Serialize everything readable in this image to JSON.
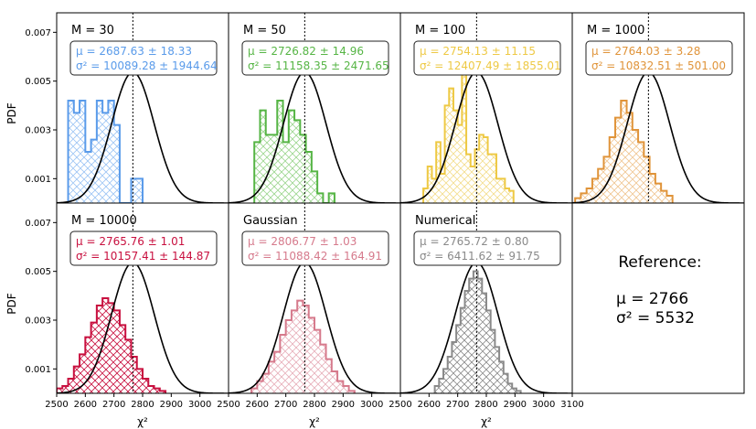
{
  "chart_data": {
    "type": "histogram",
    "y_label": "PDF",
    "x_label": "χ²",
    "x_ticks": [
      "2500",
      "2600",
      "2700",
      "2800",
      "2900",
      "3000",
      "3100"
    ],
    "y_ticks": [
      "0.001",
      "0.003",
      "0.005",
      "0.007"
    ],
    "xlim": [
      2500,
      3100
    ],
    "ylim": [
      0,
      0.0078
    ],
    "reference_curve": {
      "type": "normal",
      "mean": 2766,
      "variance": 5532
    },
    "reference": {
      "title": "Reference:",
      "mu_line": "μ  = 2766",
      "sigma_line": "σ² = 5532"
    },
    "panels": [
      {
        "label": "M = 30",
        "color": "#5a9bea",
        "hatch_color": "#9cc4f4",
        "mu_text": "μ  = 2687.63 ± 18.33",
        "sigma_text": "σ² = 10089.28 ± 1944.64",
        "bin_start": 2540,
        "bin_width": 20,
        "values": [
          0.0042,
          0.0037,
          0.0042,
          0.0021,
          0.0026,
          0.0042,
          0.0037,
          0.0042,
          0.0032,
          0.0,
          0.0,
          0.001,
          0.001
        ]
      },
      {
        "label": "M = 50",
        "color": "#56b545",
        "hatch_color": "#9cd68f",
        "mu_text": "μ  = 2726.82 ± 14.96",
        "sigma_text": "σ² = 11158.35 ± 2471.65",
        "bin_start": 2590,
        "bin_width": 20,
        "values": [
          0.0025,
          0.0038,
          0.0028,
          0.0028,
          0.0042,
          0.0025,
          0.0038,
          0.0034,
          0.0028,
          0.0021,
          0.0013,
          0.0004,
          0.0,
          0.0004
        ]
      },
      {
        "label": "M = 100",
        "color": "#eec944",
        "hatch_color": "#f3dd8c",
        "mu_text": "μ  = 2754.13 ± 11.15",
        "sigma_text": "σ² = 12407.49 ± 1855.01",
        "bin_start": 2580,
        "bin_width": 15,
        "values": [
          0.0006,
          0.0015,
          0.001,
          0.0025,
          0.0012,
          0.004,
          0.0047,
          0.0038,
          0.0032,
          0.0054,
          0.002,
          0.0015,
          0.0022,
          0.0028,
          0.0027,
          0.002,
          0.002,
          0.001,
          0.001,
          0.0006,
          0.0005
        ]
      },
      {
        "label": "M = 1000",
        "color": "#e0943a",
        "hatch_color": "#f0c591",
        "mu_text": "μ  = 2764.03 ± 3.28",
        "sigma_text": "σ² = 10832.51 ± 501.00",
        "bin_start": 2510,
        "bin_width": 20,
        "values": [
          0.0002,
          0.0004,
          0.0006,
          0.001,
          0.0014,
          0.0019,
          0.0027,
          0.0035,
          0.0042,
          0.0037,
          0.003,
          0.0025,
          0.0019,
          0.0012,
          0.0008,
          0.0005,
          0.0003
        ]
      },
      {
        "label": "M = 10000",
        "color": "#c8103f",
        "hatch_color": "#c8103f",
        "mu_text": "μ  = 2765.76 ± 1.01",
        "sigma_text": "σ² = 10157.41 ± 144.87",
        "bin_start": 2500,
        "bin_width": 20,
        "values": [
          0.0002,
          0.0003,
          0.0006,
          0.0011,
          0.0016,
          0.0023,
          0.0029,
          0.0036,
          0.0039,
          0.0037,
          0.0034,
          0.0028,
          0.0022,
          0.0015,
          0.001,
          0.0006,
          0.0003,
          0.0002,
          0.0001
        ]
      },
      {
        "label": "Gaussian",
        "color": "#d67a8c",
        "hatch_color": "#e7afba",
        "mu_text": "μ  = 2806.77 ± 1.03",
        "sigma_text": "σ² = 11088.42 ± 164.91",
        "bin_start": 2580,
        "bin_width": 20,
        "values": [
          0.0002,
          0.0005,
          0.0008,
          0.0013,
          0.0017,
          0.0024,
          0.003,
          0.0034,
          0.0038,
          0.0036,
          0.0031,
          0.0026,
          0.002,
          0.0014,
          0.0009,
          0.0005,
          0.0003,
          0.0001
        ]
      },
      {
        "label": "Numerical",
        "color": "#8a8a8a",
        "hatch_color": "#8a8a8a",
        "mu_text": "μ  = 2765.72 ± 0.80",
        "sigma_text": "σ² = 6411.62 ± 91.75",
        "bin_start": 2620,
        "bin_width": 15,
        "values": [
          0.0003,
          0.0006,
          0.001,
          0.0015,
          0.0021,
          0.0028,
          0.0035,
          0.0042,
          0.0047,
          0.005,
          0.0047,
          0.0041,
          0.0034,
          0.0026,
          0.0019,
          0.0013,
          0.0008,
          0.0004,
          0.0002,
          0.0001
        ]
      }
    ]
  }
}
